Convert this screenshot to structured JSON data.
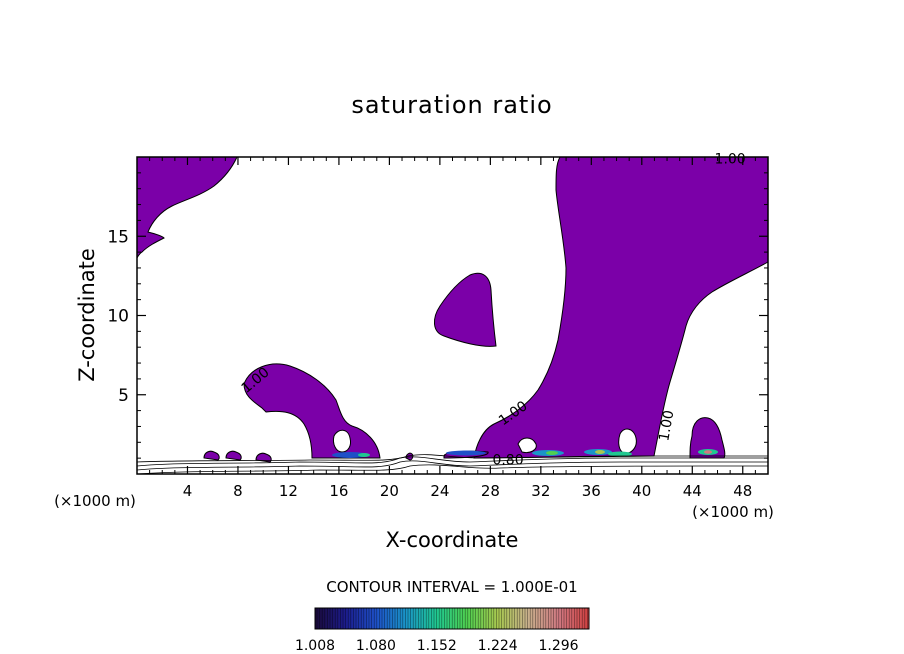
{
  "chart_data": {
    "type": "contour",
    "title": "saturation ratio",
    "xlabel": "X-coordinate",
    "ylabel": "Z-coordinate",
    "x_unit": "(×1000 m)",
    "y_unit": "(×1000 m)",
    "xlim": [
      0,
      50
    ],
    "ylim": [
      0,
      20
    ],
    "x_ticks": [
      4,
      8,
      12,
      16,
      20,
      24,
      28,
      32,
      36,
      40,
      44,
      48
    ],
    "y_ticks": [
      5,
      10,
      15
    ],
    "contour_interval_text": "CONTOUR INTERVAL = 1.000E-01",
    "contour_labels": [
      {
        "text": "1.00",
        "x": 47.0,
        "z": 19.6,
        "rotate": 0
      },
      {
        "text": "1.00",
        "x": 9.6,
        "z": 5.7,
        "rotate": -40
      },
      {
        "text": "1.00",
        "x": 30.0,
        "z": 3.6,
        "rotate": -35
      },
      {
        "text": "1.00",
        "x": 42.3,
        "z": 3.0,
        "rotate": -80
      },
      {
        "text": "0.80",
        "x": 29.4,
        "z": 0.6,
        "rotate": 0
      }
    ],
    "fill_threshold": 1.0,
    "fill_color": "#7b00a8",
    "colorbar": {
      "min": 1.008,
      "max": 1.332,
      "tick_values": [
        1.008,
        1.08,
        1.152,
        1.224,
        1.296
      ],
      "tick_labels": [
        "1.008",
        "1.080",
        "1.152",
        "1.224",
        "1.296"
      ],
      "colors": [
        "#1a0a3a",
        "#1c1c8c",
        "#1e50c8",
        "#1a96c8",
        "#20c890",
        "#50d050",
        "#a8c850",
        "#c8b08c",
        "#d07a82",
        "#d04040"
      ]
    }
  }
}
